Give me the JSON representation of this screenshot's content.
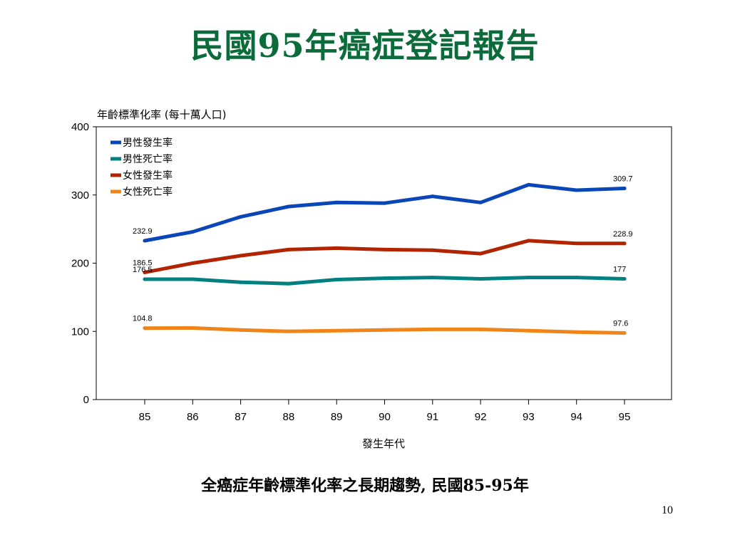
{
  "slide": {
    "title": "民國95年癌症登記報告",
    "caption": "全癌症年齡標準化率之長期趨勢, 民國85-95年",
    "page_number": "10"
  },
  "chart_data": {
    "type": "line",
    "title": "",
    "ylabel": "年齡標準化率 (每十萬人口)",
    "xlabel": "發生年代",
    "ylim": [
      0,
      400
    ],
    "yticks": [
      0,
      100,
      200,
      300,
      400
    ],
    "grid": false,
    "legend_position": "top-left",
    "x": [
      "85",
      "86",
      "87",
      "88",
      "89",
      "90",
      "91",
      "92",
      "93",
      "94",
      "95"
    ],
    "series": [
      {
        "name": "男性發生率",
        "color": "#0b46b8",
        "values": [
          232.9,
          246,
          268,
          283,
          289,
          288,
          298,
          289,
          315,
          307,
          309.7
        ],
        "labels": {
          "first": "232.9",
          "last": "309.7"
        }
      },
      {
        "name": "男性死亡率",
        "color": "#008080",
        "values": [
          176.5,
          176.5,
          172,
          170,
          176,
          178,
          179,
          177,
          179,
          179,
          177
        ],
        "labels": {
          "first": "176.5",
          "last": "177"
        }
      },
      {
        "name": "女性發生率",
        "color": "#b22400",
        "values": [
          186.5,
          200,
          211,
          220,
          222,
          220,
          219,
          214,
          233,
          229,
          228.9
        ],
        "labels": {
          "first": "186.5",
          "last": "228.9"
        }
      },
      {
        "name": "女性死亡率",
        "color": "#f08418",
        "values": [
          104.8,
          105,
          102,
          100,
          101,
          102,
          103,
          103,
          101,
          99,
          97.6
        ],
        "labels": {
          "first": "104.8",
          "last": "97.6"
        }
      }
    ]
  }
}
